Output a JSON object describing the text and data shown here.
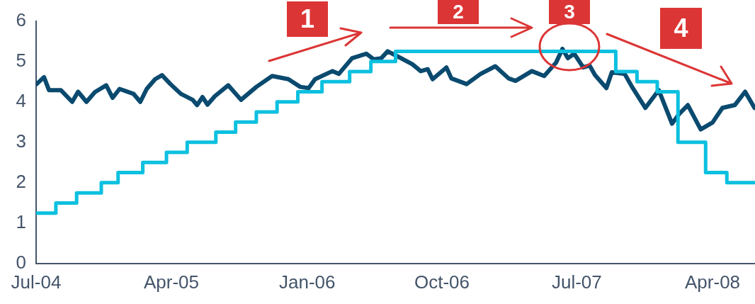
{
  "chart_data": {
    "type": "line",
    "xlim": [
      "2004-07-01",
      "2008-06-26"
    ],
    "ylim": [
      0,
      6
    ],
    "yticks": [
      0,
      1,
      2,
      3,
      4,
      5,
      6
    ],
    "xticks": [
      {
        "value": "2004-07-01",
        "label": "Jul-04"
      },
      {
        "value": "2005-04-01",
        "label": "Apr-05"
      },
      {
        "value": "2006-01-01",
        "label": "Jan-06"
      },
      {
        "value": "2006-10-01",
        "label": "Oct-06"
      },
      {
        "value": "2007-07-01",
        "label": "Jul-07"
      },
      {
        "value": "2008-04-01",
        "label": "Apr-08"
      }
    ],
    "grid": false,
    "marker": "none",
    "line_style": "solid",
    "annotations": [
      "1",
      "2",
      "3",
      "4"
    ],
    "series": [
      {
        "type": "step",
        "color": "#0cc0df",
        "x": [
          "2004-07-01",
          "2004-08-10",
          "2004-09-21",
          "2004-11-10",
          "2004-12-14",
          "2005-02-02",
          "2005-03-22",
          "2005-05-03",
          "2005-06-30",
          "2005-08-09",
          "2005-09-20",
          "2005-11-01",
          "2005-12-13",
          "2006-01-31",
          "2006-03-28",
          "2006-05-10",
          "2006-06-29",
          "2007-09-18",
          "2007-10-31",
          "2007-12-11",
          "2008-01-22",
          "2008-03-18",
          "2008-04-30",
          "2008-06-26"
        ],
        "values": [
          1.25,
          1.5,
          1.75,
          2.0,
          2.25,
          2.5,
          2.75,
          3.0,
          3.25,
          3.5,
          3.75,
          4.0,
          4.25,
          4.5,
          4.75,
          5.0,
          5.25,
          4.75,
          4.5,
          4.25,
          3.0,
          2.25,
          2.0,
          2.0
        ]
      },
      {
        "type": "line",
        "color": "#0b4a6f",
        "x": [
          "2004-07-02",
          "2004-07-17",
          "2004-07-27",
          "2004-08-20",
          "2004-09-12",
          "2004-09-24",
          "2004-10-11",
          "2004-10-28",
          "2004-11-20",
          "2004-12-03",
          "2004-12-17",
          "2005-01-14",
          "2005-01-28",
          "2005-02-10",
          "2005-02-27",
          "2005-03-13",
          "2005-03-30",
          "2005-04-20",
          "2005-05-14",
          "2005-05-23",
          "2005-06-03",
          "2005-06-13",
          "2005-06-28",
          "2005-07-25",
          "2005-08-20",
          "2005-09-20",
          "2005-10-22",
          "2005-11-24",
          "2005-12-18",
          "2006-01-04",
          "2006-01-17",
          "2006-02-21",
          "2006-03-06",
          "2006-04-02",
          "2006-05-01",
          "2006-05-16",
          "2006-05-31",
          "2006-06-13",
          "2006-07-07",
          "2006-08-02",
          "2006-08-19",
          "2006-09-02",
          "2006-09-12",
          "2006-10-10",
          "2006-10-20",
          "2006-11-20",
          "2006-12-18",
          "2007-01-17",
          "2007-02-13",
          "2007-02-27",
          "2007-04-01",
          "2007-04-26",
          "2007-05-20",
          "2007-06-02",
          "2007-06-13",
          "2007-06-26",
          "2007-07-14",
          "2007-07-27",
          "2007-08-07",
          "2007-08-30",
          "2007-09-10",
          "2007-10-06",
          "2007-10-21",
          "2007-11-17",
          "2007-12-14",
          "2008-01-10",
          "2008-01-25",
          "2008-02-11",
          "2008-03-08",
          "2008-04-01",
          "2008-04-21",
          "2008-05-16",
          "2008-06-06",
          "2008-06-25"
        ],
        "values": [
          4.44,
          4.61,
          4.29,
          4.29,
          4.0,
          4.25,
          4.0,
          4.24,
          4.41,
          4.1,
          4.32,
          4.2,
          4.0,
          4.32,
          4.56,
          4.66,
          4.44,
          4.2,
          4.05,
          3.92,
          4.12,
          3.93,
          4.14,
          4.41,
          4.05,
          4.37,
          4.64,
          4.56,
          4.37,
          4.34,
          4.56,
          4.76,
          4.69,
          5.08,
          5.19,
          5.05,
          5.08,
          5.25,
          5.1,
          4.93,
          4.76,
          4.81,
          4.56,
          4.85,
          4.58,
          4.44,
          4.69,
          4.88,
          4.58,
          4.52,
          4.76,
          4.64,
          4.97,
          5.31,
          5.08,
          5.19,
          4.85,
          4.9,
          4.66,
          4.34,
          4.73,
          4.69,
          4.37,
          3.85,
          4.29,
          3.46,
          3.71,
          3.92,
          3.32,
          3.49,
          3.85,
          3.92,
          4.25,
          3.85
        ]
      }
    ]
  }
}
